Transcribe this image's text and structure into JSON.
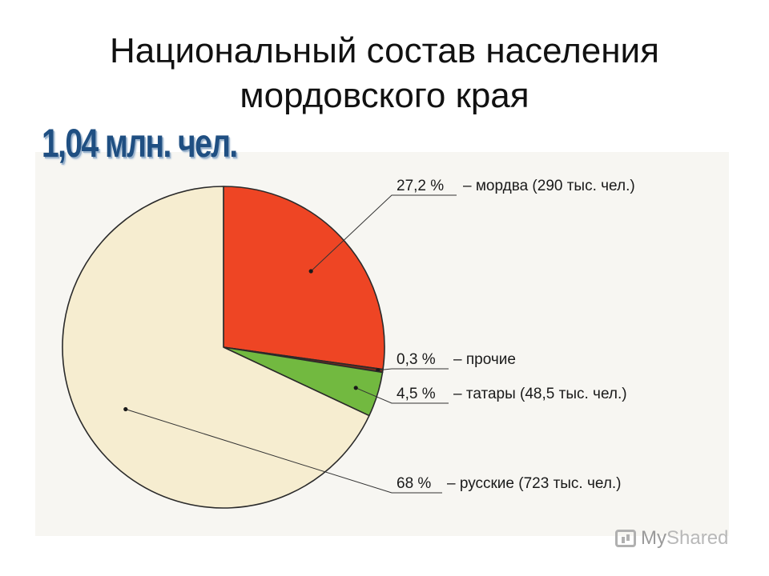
{
  "title_line1": "Национальный состав населения",
  "title_line2": "мордовского края",
  "subtitle": "1,04 млн. чел.",
  "watermark": {
    "my": "My",
    "shared": "Shared"
  },
  "chart_data": {
    "type": "pie",
    "slices": [
      {
        "name": "мордва",
        "value": 27.2,
        "pct_label": "27,2 %",
        "text": "– мордва (290 тыс. чел.)",
        "color": "#ee4524"
      },
      {
        "name": "прочие",
        "value": 0.3,
        "pct_label": "0,3 %",
        "text": "– прочие",
        "color": "#7a2a1e"
      },
      {
        "name": "татары",
        "value": 4.5,
        "pct_label": "4,5 %",
        "text": "– татары (48,5 тыс. чел.)",
        "color": "#72b940"
      },
      {
        "name": "русские",
        "value": 68,
        "pct_label": "68 %",
        "text": "– русские (723 тыс. чел.)",
        "color": "#f6edd0"
      }
    ]
  }
}
